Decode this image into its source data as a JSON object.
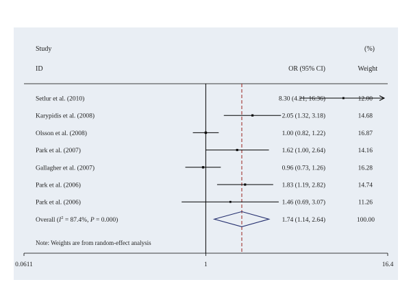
{
  "chart_data": {
    "type": "forest",
    "header": {
      "study_col_line1": "Study",
      "study_col_line2": "ID",
      "estimate_col": "OR (95% CI)",
      "weight_col_line1": "(%)",
      "weight_col_line2": "Weight"
    },
    "scale": "log",
    "x_ticks": [
      "0.0611",
      "1",
      "16.4"
    ],
    "x_range": [
      0.0611,
      16.4
    ],
    "reference_line": 1,
    "pooled_line": 1.74,
    "studies": [
      {
        "label": "Setlur et al. (2010)",
        "or": 8.3,
        "lo": 4.21,
        "hi": 16.36,
        "ci_text": "8.30 (4.21, 16.36)",
        "weight": "12.00",
        "arrow_right": true
      },
      {
        "label": "Karypidis et al. (2008)",
        "or": 2.05,
        "lo": 1.32,
        "hi": 3.18,
        "ci_text": "2.05 (1.32, 3.18)",
        "weight": "14.68"
      },
      {
        "label": "Olsson et al. (2008)",
        "or": 1.0,
        "lo": 0.82,
        "hi": 1.22,
        "ci_text": "1.00 (0.82, 1.22)",
        "weight": "16.87"
      },
      {
        "label": "Park et al. (2007)",
        "or": 1.62,
        "lo": 1.0,
        "hi": 2.64,
        "ci_text": "1.62 (1.00, 2.64)",
        "weight": "14.16"
      },
      {
        "label": "Gallagher et al. (2007)",
        "or": 0.96,
        "lo": 0.73,
        "hi": 1.26,
        "ci_text": "0.96 (0.73, 1.26)",
        "weight": "16.28"
      },
      {
        "label": "Park et al. (2006)",
        "or": 1.83,
        "lo": 1.19,
        "hi": 2.82,
        "ci_text": "1.83 (1.19, 2.82)",
        "weight": "14.74"
      },
      {
        "label": "Park et al. (2006)",
        "or": 1.46,
        "lo": 0.69,
        "hi": 3.07,
        "ci_text": "1.46 (0.69, 3.07)",
        "weight": "11.26"
      }
    ],
    "overall": {
      "label_prefix": "Overall (",
      "i2_symbol": "I",
      "i2_sup": "2",
      "label_middle": " = 87.4%, ",
      "p_symbol": "P",
      "label_suffix": " = 0.000)",
      "or": 1.74,
      "lo": 1.14,
      "hi": 2.64,
      "ci_text": "1.74 (1.14, 2.64)",
      "weight": "100.00"
    },
    "note": "Note: Weights are from random-effect analysis",
    "colors": {
      "background": "#e9eef4",
      "pooled_line": "#a0322d",
      "diamond": "#1f2a6b",
      "marks": "#000000"
    }
  }
}
